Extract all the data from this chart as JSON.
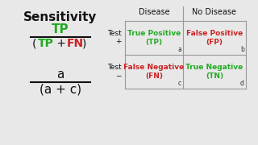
{
  "title": "Sensitivity",
  "title_color": "#111111",
  "bg_color": "#e8e8e8",
  "formula_tp_color": "#22aa22",
  "formula_fn_color": "#cc2222",
  "cell_tp_color": "#22aa22",
  "cell_fp_color": "#cc2222",
  "cell_fn_color": "#cc2222",
  "cell_tn_color": "#22aa22",
  "table_header_disease": "Disease",
  "table_header_no_disease": "No Disease",
  "table_border_color": "#999999",
  "label_color": "#333333"
}
